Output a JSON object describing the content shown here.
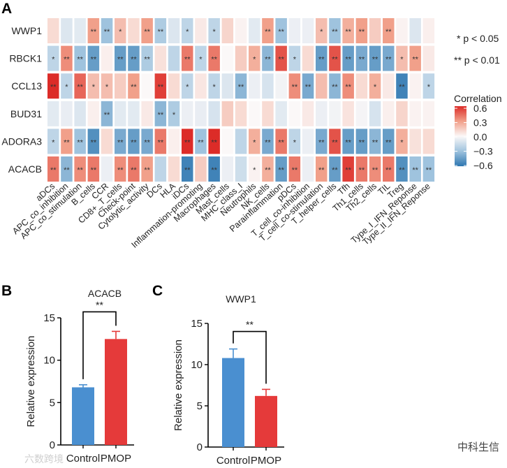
{
  "chart_data": [
    {
      "type": "heatmap",
      "panel_label": "A",
      "rows": [
        "WWP1",
        "RBCK1",
        "CCL13",
        "BUD31",
        "ADORA3",
        "ACACB"
      ],
      "columns": [
        "aDCs",
        "APC_co_inhibition",
        "APC_co_stimulation",
        "B_cells",
        "CCR",
        "CD8+_T_cells",
        "Check-point",
        "Cytolytic_activity",
        "DCs",
        "HLA",
        "iDCs",
        "Inflammation-promoting",
        "Macrophages",
        "Mast_cells",
        "MHC_class_I",
        "Neutrophils",
        "NK_cells",
        "Parainflammation",
        "pDCs",
        "T_cell_co-inhibition",
        "T_cell_co-stimulation",
        "T_helper_cells",
        "Tfh",
        "Th1_cells",
        "Th2_cells",
        "TIL",
        "Treg",
        "Type_I_IFN_Reponse",
        "Type_II_IFN_Reponse"
      ],
      "values": [
        [
          0.1,
          -0.1,
          -0.08,
          0.3,
          -0.3,
          0.2,
          0.1,
          0.3,
          -0.25,
          -0.1,
          -0.2,
          0.05,
          -0.2,
          0.12,
          0.02,
          -0.08,
          0.3,
          -0.3,
          -0.05,
          -0.05,
          0.2,
          -0.3,
          0.25,
          0.3,
          0.15,
          0.3,
          0.02,
          -0.1,
          0.03
        ],
        [
          -0.2,
          0.35,
          -0.3,
          -0.45,
          0.03,
          -0.45,
          -0.45,
          -0.25,
          0.08,
          -0.2,
          0.4,
          -0.2,
          0.4,
          0.0,
          0.15,
          0.25,
          -0.35,
          0.5,
          -0.2,
          0.1,
          -0.45,
          0.5,
          -0.45,
          -0.4,
          -0.45,
          -0.4,
          0.2,
          0.3,
          0.05
        ],
        [
          0.6,
          -0.2,
          0.45,
          0.2,
          0.2,
          0.15,
          0.3,
          0.0,
          0.55,
          0.1,
          -0.2,
          0.06,
          -0.2,
          -0.1,
          -0.35,
          -0.05,
          -0.12,
          -0.03,
          0.35,
          -0.4,
          0.2,
          -0.35,
          0.35,
          0.1,
          0.25,
          0.05,
          -0.55,
          0.02,
          -0.2
        ],
        [
          -0.08,
          -0.06,
          -0.1,
          0.03,
          -0.35,
          -0.08,
          -0.08,
          0.05,
          -0.35,
          -0.25,
          -0.05,
          -0.06,
          -0.12,
          0.15,
          0.1,
          0.0,
          0.1,
          -0.08,
          0.0,
          0.05,
          -0.05,
          -0.03,
          0.07,
          -0.02,
          -0.12,
          0.03,
          0.12,
          0.02,
          0.02
        ],
        [
          -0.2,
          0.3,
          -0.3,
          -0.5,
          0.1,
          -0.4,
          -0.45,
          -0.4,
          0.4,
          0.03,
          0.65,
          -0.3,
          0.65,
          0.0,
          -0.2,
          0.25,
          -0.4,
          0.4,
          -0.2,
          -0.05,
          -0.4,
          0.5,
          -0.45,
          -0.45,
          -0.35,
          -0.45,
          0.25,
          0.08,
          0.1
        ],
        [
          0.4,
          -0.35,
          0.35,
          0.4,
          -0.05,
          0.35,
          0.4,
          0.3,
          -0.2,
          0.1,
          -0.55,
          0.15,
          -0.55,
          -0.05,
          -0.15,
          0.02,
          0.25,
          -0.45,
          0.4,
          -0.05,
          0.3,
          -0.45,
          0.55,
          0.4,
          0.35,
          0.4,
          -0.5,
          -0.3,
          -0.3
        ]
      ],
      "significance": [
        [
          "",
          "",
          "",
          "**",
          "**",
          "*",
          "",
          "**",
          "**",
          "",
          "*",
          "",
          "*",
          "",
          "",
          "",
          "**",
          "**",
          "",
          "",
          "*",
          "**",
          "**",
          "**",
          "",
          "**",
          "",
          "",
          ""
        ],
        [
          "*",
          "**",
          "**",
          "**",
          "",
          "**",
          "**",
          "**",
          "",
          "",
          "**",
          "*",
          "**",
          "",
          "",
          "*",
          "**",
          "**",
          "*",
          "",
          "**",
          "**",
          "**",
          "**",
          "**",
          "**",
          "*",
          "**",
          ""
        ],
        [
          "**",
          "*",
          "**",
          "*",
          "*",
          "",
          "**",
          "",
          "**",
          "",
          "*",
          "",
          "*",
          "",
          "**",
          "",
          "",
          "",
          "**",
          "**",
          "",
          "**",
          "**",
          "",
          "*",
          "",
          "**",
          "",
          "*"
        ],
        [
          "",
          "",
          "",
          "",
          "**",
          "",
          "",
          "",
          "**",
          "*",
          "",
          "",
          "",
          "",
          "",
          "",
          "",
          "",
          "",
          "",
          "",
          "",
          "",
          "",
          "",
          "",
          "",
          "",
          ""
        ],
        [
          "*",
          "**",
          "**",
          "**",
          "",
          "**",
          "**",
          "**",
          "**",
          "",
          "**",
          "**",
          "**",
          "",
          "",
          "*",
          "**",
          "**",
          "*",
          "",
          "**",
          "**",
          "**",
          "**",
          "**",
          "**",
          "*",
          "",
          ""
        ],
        [
          "**",
          "**",
          "**",
          "**",
          "",
          "**",
          "**",
          "**",
          "",
          "",
          "**",
          "",
          "**",
          "",
          "",
          "*",
          "**",
          "**",
          "**",
          "",
          "**",
          "**",
          "**",
          "**",
          "**",
          "**",
          "**",
          "**",
          "**"
        ]
      ],
      "legend": {
        "title": "Correlation",
        "ticks": [
          "0.6",
          "0.3",
          "0.0",
          "−0.3",
          "−0.6"
        ],
        "range": [
          -0.6,
          0.6
        ],
        "sig1": "* p < 0.05",
        "sig2": "** p < 0.01",
        "placement": "right"
      },
      "colors": {
        "neg": "#2d76b0",
        "mid": "#fbf8f8",
        "pos": "#dc2c28"
      }
    },
    {
      "type": "bar",
      "panel_label": "B",
      "title": "ACACB",
      "categories": [
        "Control",
        "PMOP"
      ],
      "values": [
        6.8,
        12.5
      ],
      "errors": [
        0.3,
        0.9
      ],
      "ylabel": "Relative expression",
      "ylim": [
        0,
        15
      ],
      "yticks": [
        "0",
        "5",
        "10",
        "15"
      ],
      "significance": "**",
      "colors": [
        "#4a8fd0",
        "#e53a3a"
      ]
    },
    {
      "type": "bar",
      "panel_label": "C",
      "title": "WWP1",
      "categories": [
        "Control",
        "PMOP"
      ],
      "values": [
        10.8,
        6.2
      ],
      "errors": [
        1.1,
        0.8
      ],
      "ylabel": "Relative expression",
      "ylim": [
        0,
        15
      ],
      "yticks": [
        "0",
        "5",
        "10",
        "15"
      ],
      "significance": "**",
      "colors": [
        "#4a8fd0",
        "#e53a3a"
      ]
    }
  ],
  "watermarks": {
    "left": "六数跨境",
    "right": "中科生信"
  }
}
